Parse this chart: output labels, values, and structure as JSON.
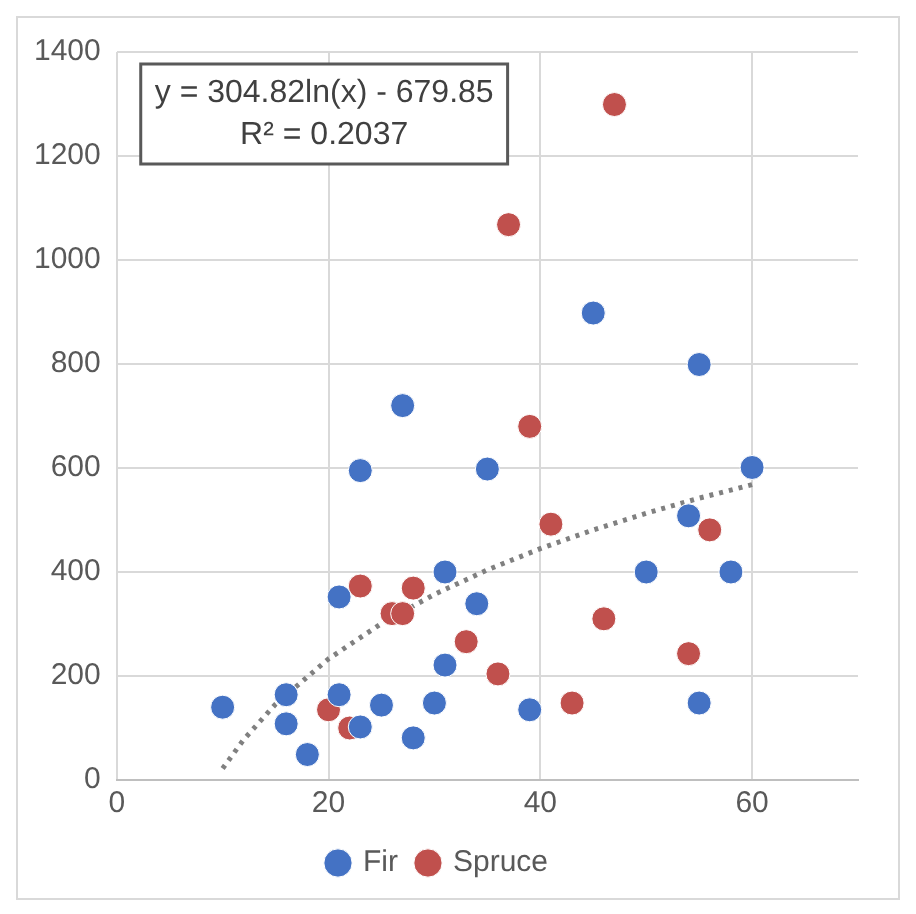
{
  "chart_data": {
    "type": "scatter",
    "annotations": [
      "y = 304.82ln(x) - 679.85",
      "R² = 0.2037"
    ],
    "xlim": [
      0,
      70
    ],
    "xticks": [
      0,
      20,
      40,
      60
    ],
    "ylim": [
      0,
      1400
    ],
    "yticks": [
      0,
      200,
      400,
      600,
      800,
      1000,
      1200,
      1400
    ],
    "grid": true,
    "legend": "bottom",
    "marker": "circle",
    "series": [
      {
        "name": "Fir",
        "color": "#4472c4",
        "x": [
          10,
          16,
          16,
          18,
          21,
          21,
          23,
          23,
          25,
          27,
          28,
          30,
          31,
          31,
          34,
          35,
          39,
          45,
          50,
          54,
          55,
          55,
          58,
          60
        ],
        "values": [
          140,
          164,
          108,
          49,
          352,
          164,
          102,
          595,
          144,
          720,
          81,
          148,
          400,
          221,
          339,
          598,
          135,
          898,
          400,
          508,
          799,
          148,
          400,
          601
        ]
      },
      {
        "name": "Spruce",
        "color": "#c0504d",
        "x": [
          20,
          22,
          23,
          26,
          27,
          28,
          33,
          36,
          37,
          39,
          41,
          43,
          46,
          47,
          54,
          56
        ],
        "values": [
          135,
          100,
          373,
          320,
          320,
          369,
          266,
          204,
          1068,
          680,
          492,
          148,
          310,
          1299,
          243,
          481
        ]
      },
      {
        "type": "line",
        "color": "#808080",
        "line_style": "dotted",
        "marker": "none",
        "x": [
          10,
          12,
          15,
          20,
          25,
          30,
          35,
          40,
          45,
          50,
          55,
          60
        ],
        "values": [
          22,
          78,
          146,
          233,
          301,
          357,
          404,
          445,
          481,
          513,
          542,
          568
        ]
      }
    ]
  }
}
